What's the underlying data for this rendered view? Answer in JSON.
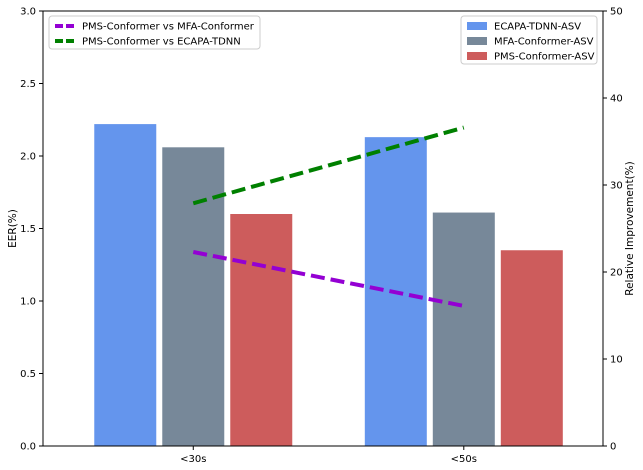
{
  "chart_data": {
    "type": "bar",
    "categories": [
      "<30s",
      "<50s"
    ],
    "ylabel": "EER(%)",
    "y2label": "Relative Improvement(%)",
    "ylim": [
      0,
      3.0
    ],
    "y2lim": [
      0,
      50
    ],
    "yticks": [
      "0.0",
      "0.5",
      "1.0",
      "1.5",
      "2.0",
      "2.5",
      "3.0"
    ],
    "y2ticks": [
      "0",
      "10",
      "20",
      "30",
      "40",
      "50"
    ],
    "series": [
      {
        "name": "ECAPA-TDNN-ASV",
        "color": "#6495ED",
        "values": [
          2.22,
          2.13
        ]
      },
      {
        "name": "MFA-Conformer-ASV",
        "color": "#778899",
        "values": [
          2.06,
          1.61
        ]
      },
      {
        "name": "PMS-Conformer-ASV",
        "color": "#CD5C5C",
        "values": [
          1.6,
          1.35
        ]
      }
    ],
    "lines": [
      {
        "name": "PMS-Conformer vs MFA-Conformer",
        "color": "#9400D3",
        "axis": "right",
        "style": "dashed",
        "values": [
          22.3,
          16.1
        ]
      },
      {
        "name": "PMS-Conformer vs ECAPA-TDNN",
        "color": "#008000",
        "axis": "right",
        "style": "dashed",
        "values": [
          27.9,
          36.6
        ]
      }
    ],
    "legend_lines_position": "top-left",
    "legend_bars_position": "top-right",
    "grid": false
  }
}
